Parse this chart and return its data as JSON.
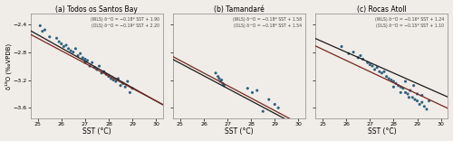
{
  "panels": [
    {
      "title": "(a) Todos os Santos Bay",
      "xlim": [
        24.7,
        30.3
      ],
      "ylim": [
        -3.75,
        -2.25
      ],
      "xticks": [
        25,
        26,
        27,
        28,
        29,
        30
      ],
      "yticks": [
        -3.6,
        -3.2,
        -2.8,
        -2.4
      ],
      "wls_slope": -0.18,
      "wls_intercept": 1.9,
      "ols_slope": -0.19,
      "ols_intercept": 2.2,
      "wls_label": "(WLS) δ¹⁸O = −0.18* SST + 1.90",
      "ols_label": "(OLS) δ¹⁸O = −0.19* SST + 2.20",
      "scatter_x": [
        25.1,
        25.2,
        25.3,
        25.5,
        25.8,
        25.9,
        26.0,
        26.1,
        26.2,
        26.3,
        26.4,
        26.5,
        26.6,
        26.7,
        26.8,
        26.9,
        27.0,
        27.0,
        27.1,
        27.2,
        27.3,
        27.4,
        27.5,
        27.6,
        27.7,
        27.8,
        27.9,
        28.0,
        28.1,
        28.2,
        28.3,
        28.4,
        28.5,
        28.6,
        28.7,
        28.8,
        28.9,
        29.0
      ],
      "scatter_y": [
        -2.42,
        -2.5,
        -2.48,
        -2.58,
        -2.6,
        -2.65,
        -2.68,
        -2.72,
        -2.7,
        -2.75,
        -2.78,
        -2.8,
        -2.75,
        -2.85,
        -2.82,
        -2.88,
        -2.9,
        -2.95,
        -2.92,
        -3.0,
        -2.95,
        -3.02,
        -3.05,
        -3.0,
        -3.1,
        -3.08,
        -3.12,
        -3.15,
        -3.18,
        -3.2,
        -3.22,
        -3.18,
        -3.28,
        -3.25,
        -3.3,
        -3.22,
        -3.38,
        -3.32
      ]
    },
    {
      "title": "(b) Tamandaré",
      "xlim": [
        24.7,
        30.3
      ],
      "ylim": [
        -3.75,
        -2.25
      ],
      "xticks": [
        25,
        26,
        27,
        28,
        29,
        30
      ],
      "yticks": [
        -3.6,
        -3.2,
        -2.8,
        -2.4
      ],
      "wls_slope": -0.18,
      "wls_intercept": 1.58,
      "ols_slope": -0.18,
      "ols_intercept": 1.54,
      "wls_label": "(WLS) δ¹⁸O = −0.18* SST + 1.58",
      "ols_label": "(OLS) δ¹⁸O = −0.18* SST + 1.54",
      "scatter_x": [
        26.5,
        26.6,
        26.65,
        26.7,
        26.75,
        26.8,
        26.85,
        27.85,
        28.05,
        28.25,
        28.5,
        28.75,
        29.0,
        29.15
      ],
      "scatter_y": [
        -3.1,
        -3.15,
        -3.18,
        -3.22,
        -3.2,
        -3.25,
        -3.28,
        -3.32,
        -3.38,
        -3.35,
        -3.65,
        -3.48,
        -3.55,
        -3.6
      ]
    },
    {
      "title": "(c) Rocas Atoll",
      "xlim": [
        24.7,
        30.3
      ],
      "ylim": [
        -3.75,
        -2.25
      ],
      "xticks": [
        25,
        26,
        27,
        28,
        29,
        30
      ],
      "yticks": [
        -3.6,
        -3.2,
        -2.8,
        -2.4
      ],
      "wls_slope": -0.16,
      "wls_intercept": 1.24,
      "ols_slope": -0.15,
      "ols_intercept": 1.1,
      "wls_label": "(WLS) δ¹⁸O = −0.16* SST + 1.24",
      "ols_label": "(OLS) δ¹⁸O = −0.15* SST + 1.10",
      "scatter_x": [
        25.8,
        26.1,
        26.3,
        26.5,
        26.6,
        26.7,
        26.9,
        27.0,
        27.1,
        27.2,
        27.3,
        27.4,
        27.5,
        27.6,
        27.7,
        27.8,
        27.9,
        28.0,
        28.0,
        28.1,
        28.2,
        28.3,
        28.3,
        28.4,
        28.5,
        28.5,
        28.6,
        28.65,
        28.7,
        28.8,
        28.85,
        28.9,
        29.0,
        29.0,
        29.1,
        29.2,
        29.2,
        29.3,
        29.4,
        29.5
      ],
      "scatter_y": [
        -2.72,
        -2.82,
        -2.8,
        -2.88,
        -2.85,
        -2.9,
        -2.95,
        -2.98,
        -3.0,
        -3.05,
        -3.02,
        -3.08,
        -3.1,
        -3.08,
        -3.15,
        -3.18,
        -3.2,
        -3.22,
        -3.3,
        -3.25,
        -3.28,
        -3.3,
        -3.38,
        -3.32,
        -3.38,
        -3.22,
        -3.4,
        -3.45,
        -3.35,
        -3.45,
        -3.28,
        -3.48,
        -3.5,
        -3.4,
        -3.55,
        -3.52,
        -3.42,
        -3.58,
        -3.62,
        -3.5
      ]
    }
  ],
  "dot_color": "#1a5276",
  "wls_line_color": "#7B241C",
  "ols_line_color": "#1a1a1a",
  "bg_color": "#f0ede8",
  "xlabel": "SST (°C)",
  "ylabel": "δ¹⁸O (‰VPDB)",
  "panel_bg": "#f0ede8"
}
